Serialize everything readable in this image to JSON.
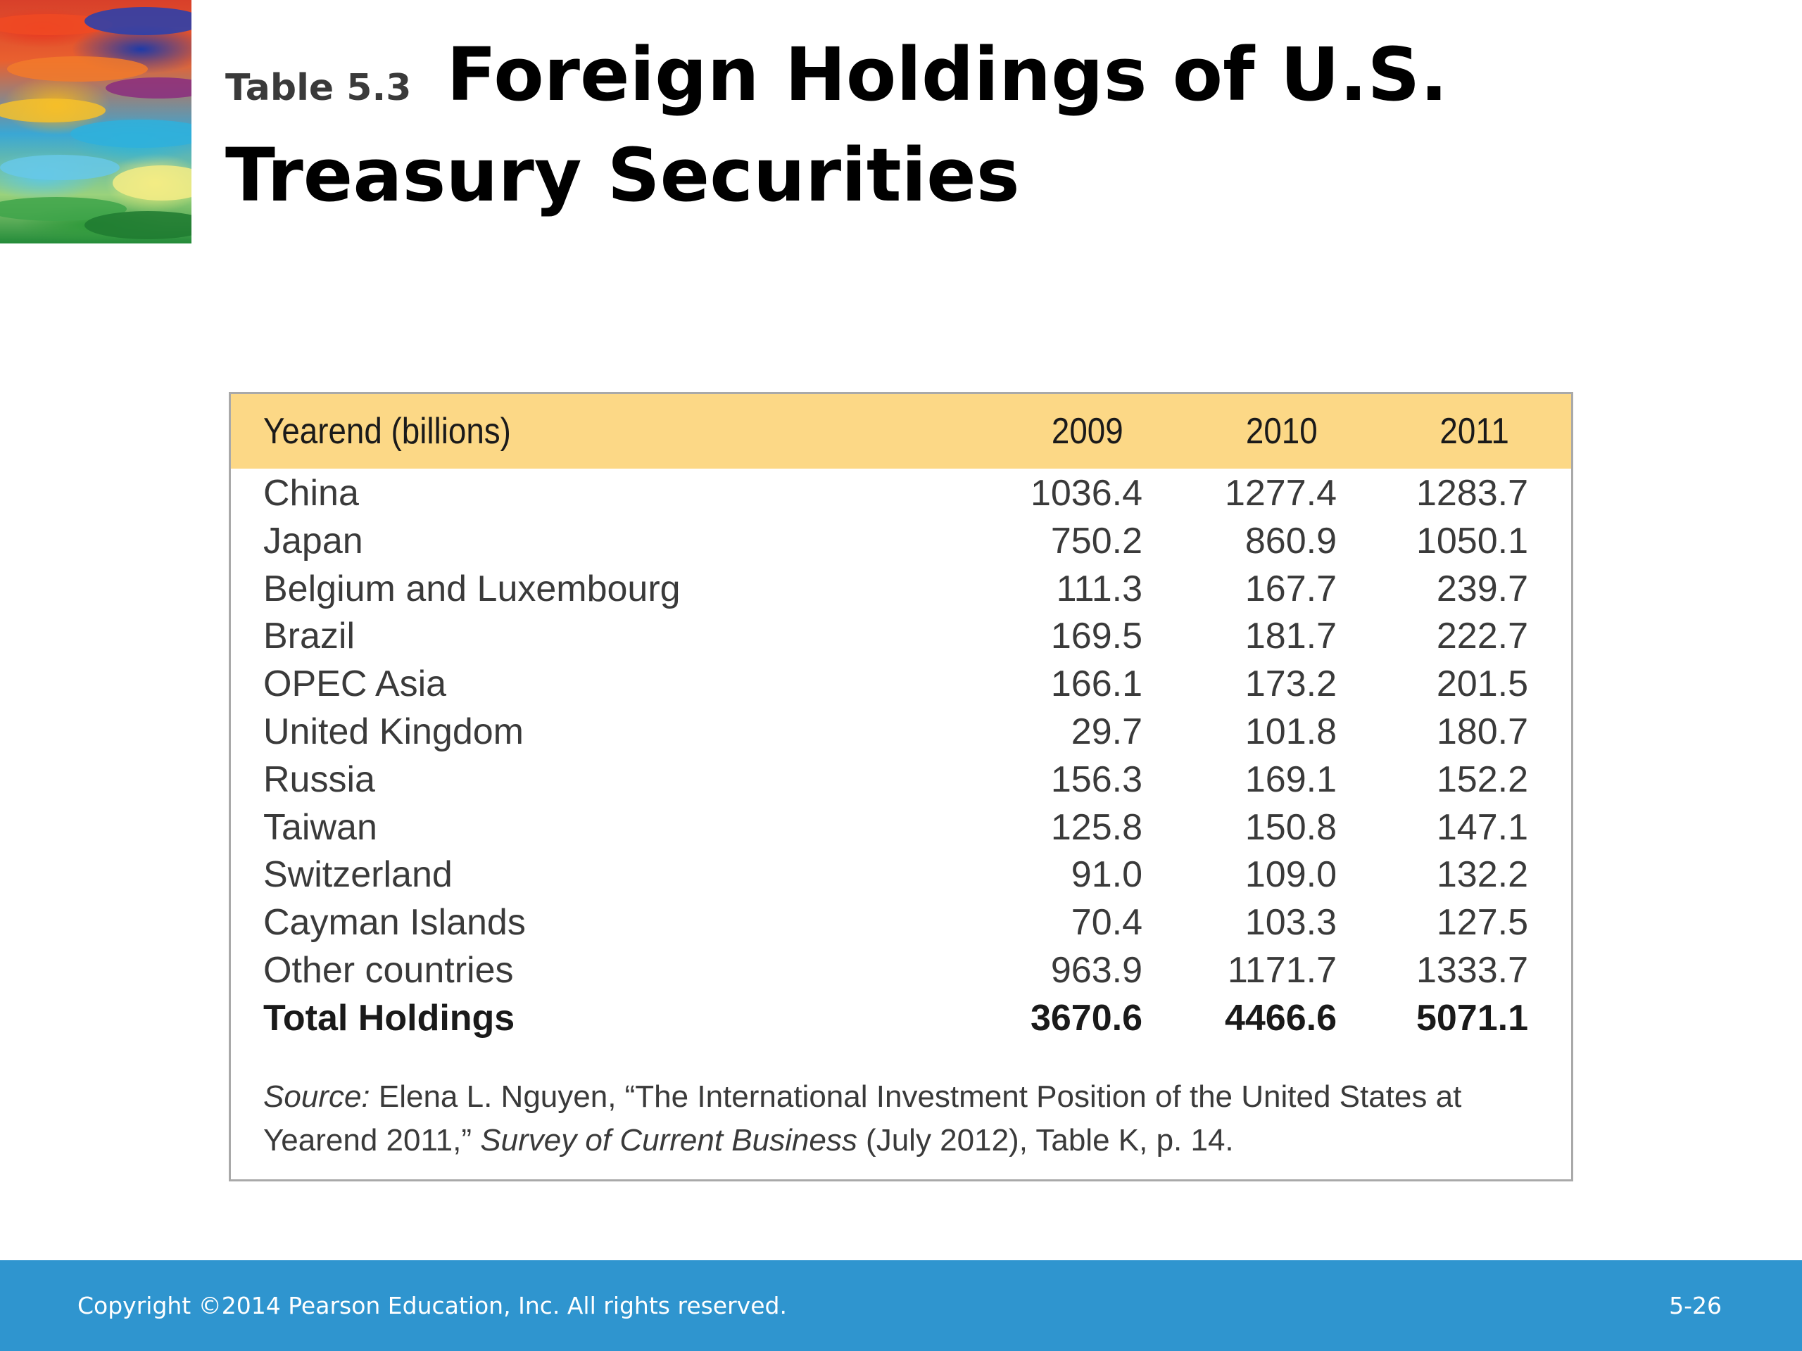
{
  "title": {
    "number": "Table 5.3",
    "text": "Foreign Holdings of U.S. Treasury Securities"
  },
  "table": {
    "columns": [
      "Yearend (billions)",
      "2009",
      "2010",
      "2011"
    ],
    "rows": [
      {
        "label": "China",
        "values": [
          "1036.4",
          "1277.4",
          "1283.7"
        ]
      },
      {
        "label": "Japan",
        "values": [
          "750.2",
          "860.9",
          "1050.1"
        ]
      },
      {
        "label": "Belgium and Luxembourg",
        "values": [
          "111.3",
          "167.7",
          "239.7"
        ]
      },
      {
        "label": "Brazil",
        "values": [
          "169.5",
          "181.7",
          "222.7"
        ]
      },
      {
        "label": "OPEC Asia",
        "values": [
          "166.1",
          "173.2",
          "201.5"
        ]
      },
      {
        "label": "United Kingdom",
        "values": [
          "29.7",
          "101.8",
          "180.7"
        ]
      },
      {
        "label": "Russia",
        "values": [
          "156.3",
          "169.1",
          "152.2"
        ]
      },
      {
        "label": "Taiwan",
        "values": [
          "125.8",
          "150.8",
          "147.1"
        ]
      },
      {
        "label": "Switzerland",
        "values": [
          "91.0",
          "109.0",
          "132.2"
        ]
      },
      {
        "label": "Cayman Islands",
        "values": [
          "70.4",
          "103.3",
          "127.5"
        ]
      },
      {
        "label": "Other countries",
        "values": [
          "963.9",
          "1171.7",
          "1333.7"
        ]
      }
    ],
    "total": {
      "label": "Total Holdings",
      "values": [
        "3670.6",
        "4466.6",
        "5071.1"
      ]
    },
    "source": {
      "label": "Source:",
      "part1": " Elena L. Nguyen, “The International Investment Position of the United States at Yearend 2011,” ",
      "publication": "Survey of Current Business",
      "part2": " (July 2012), Table K, p. 14."
    }
  },
  "footer": {
    "copyright": "Copyright ©2014 Pearson Education, Inc. All rights reserved.",
    "page": "5-26"
  },
  "colors": {
    "header_band": "#fcd886",
    "footer_bar": "#2f95cf",
    "table_border": "#a9a9a9"
  }
}
